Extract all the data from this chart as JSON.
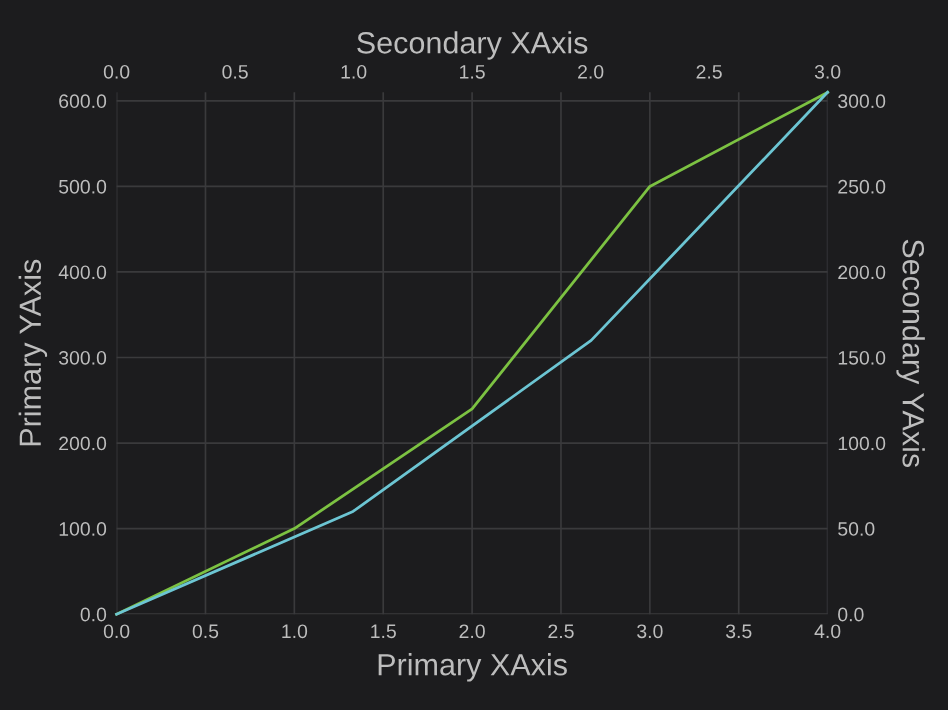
{
  "chart_data": {
    "type": "line",
    "xlabel": "Primary XAxis",
    "ylabel": "Primary YAxis",
    "x2label": "Secondary XAxis",
    "y2label": "Secondary YAxis",
    "xlim": [
      0,
      4
    ],
    "xticks": [
      {
        "value": 0,
        "label": "0.0"
      },
      {
        "value": 0.5,
        "label": "0.5"
      },
      {
        "value": 1,
        "label": "1.0"
      },
      {
        "value": 1.5,
        "label": "1.5"
      },
      {
        "value": 2,
        "label": "2.0"
      },
      {
        "value": 2.5,
        "label": "2.5"
      },
      {
        "value": 3,
        "label": "3.0"
      },
      {
        "value": 3.5,
        "label": "3.5"
      },
      {
        "value": 4,
        "label": "4.0"
      }
    ],
    "x2lim": [
      0,
      3
    ],
    "x2ticks": [
      {
        "value": 0,
        "label": "0.0"
      },
      {
        "value": 0.5,
        "label": "0.5"
      },
      {
        "value": 1,
        "label": "1.0"
      },
      {
        "value": 1.5,
        "label": "1.5"
      },
      {
        "value": 2,
        "label": "2.0"
      },
      {
        "value": 2.5,
        "label": "2.5"
      },
      {
        "value": 3,
        "label": "3.0"
      }
    ],
    "ylim": [
      0,
      610
    ],
    "yticks": [
      {
        "value": 0,
        "label": "0.0"
      },
      {
        "value": 100,
        "label": "100.0"
      },
      {
        "value": 200,
        "label": "200.0"
      },
      {
        "value": 300,
        "label": "300.0"
      },
      {
        "value": 400,
        "label": "400.0"
      },
      {
        "value": 500,
        "label": "500.0"
      },
      {
        "value": 600,
        "label": "600.0"
      }
    ],
    "y2lim": [
      0,
      305
    ],
    "y2ticks": [
      {
        "value": 0,
        "label": "0.0"
      },
      {
        "value": 50,
        "label": "50.0"
      },
      {
        "value": 100,
        "label": "100.0"
      },
      {
        "value": 150,
        "label": "150.0"
      },
      {
        "value": 200,
        "label": "200.0"
      },
      {
        "value": 250,
        "label": "250.0"
      },
      {
        "value": 300,
        "label": "300.0"
      }
    ],
    "grid": true,
    "marker": "none",
    "line_style": "solid",
    "series": [
      {
        "color": "#7cc242",
        "x": [
          0,
          1,
          2,
          3,
          4
        ],
        "values": [
          0,
          100,
          240,
          500,
          610
        ]
      },
      {
        "color": "#6cc5d3",
        "x": [
          0,
          1.33,
          2.67,
          4
        ],
        "values": [
          0,
          120,
          320,
          610
        ]
      }
    ]
  }
}
